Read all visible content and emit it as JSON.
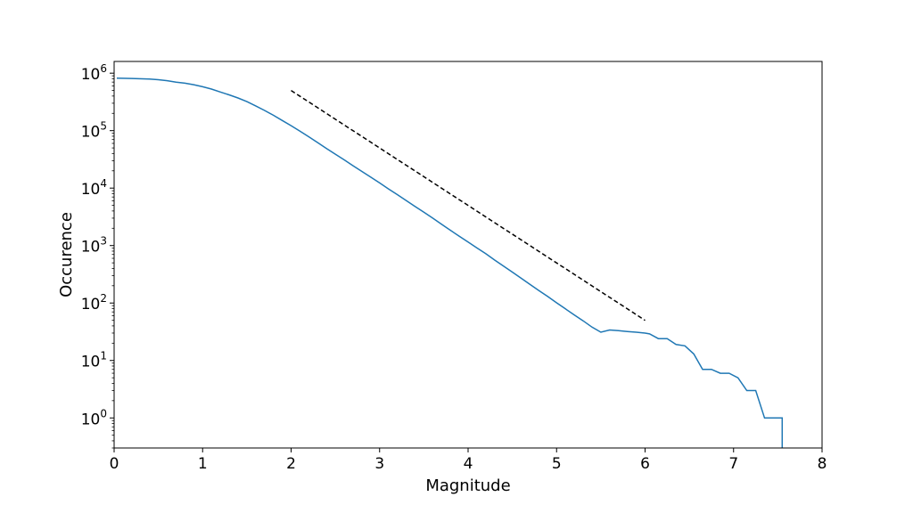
{
  "chart_data": {
    "type": "line",
    "title": "",
    "xlabel": "Magnitude",
    "ylabel": "Occurence",
    "xlim": [
      0,
      8
    ],
    "ylim": [
      0.3,
      1600000
    ],
    "y_scale": "log",
    "grid": false,
    "x_ticks": [
      {
        "value": 0,
        "label": "0"
      },
      {
        "value": 1,
        "label": "1"
      },
      {
        "value": 2,
        "label": "2"
      },
      {
        "value": 3,
        "label": "3"
      },
      {
        "value": 4,
        "label": "4"
      },
      {
        "value": 5,
        "label": "5"
      },
      {
        "value": 6,
        "label": "6"
      },
      {
        "value": 7,
        "label": "7"
      },
      {
        "value": 8,
        "label": "8"
      }
    ],
    "y_ticks": [
      {
        "value": 1,
        "base": "10",
        "exp": "0"
      },
      {
        "value": 10,
        "base": "10",
        "exp": "1"
      },
      {
        "value": 100,
        "base": "10",
        "exp": "2"
      },
      {
        "value": 1000,
        "base": "10",
        "exp": "3"
      },
      {
        "value": 10000,
        "base": "10",
        "exp": "4"
      },
      {
        "value": 100000,
        "base": "10",
        "exp": "5"
      },
      {
        "value": 1000000,
        "base": "10",
        "exp": "6"
      }
    ],
    "series": [
      {
        "color": "#1f77b4",
        "style": "solid",
        "x": [
          0.03,
          0.2,
          0.4,
          0.5,
          0.6,
          0.7,
          0.8,
          0.9,
          1.0,
          1.1,
          1.2,
          1.3,
          1.4,
          1.5,
          1.6,
          1.7,
          1.8,
          1.9,
          2.0,
          2.1,
          2.2,
          2.3,
          2.4,
          2.5,
          2.6,
          2.7,
          2.8,
          2.9,
          3.0,
          3.1,
          3.2,
          3.3,
          3.4,
          3.5,
          3.6,
          3.7,
          3.8,
          3.9,
          4.0,
          4.1,
          4.2,
          4.3,
          4.4,
          4.5,
          4.6,
          4.7,
          4.8,
          4.9,
          5.0,
          5.1,
          5.2,
          5.3,
          5.4,
          5.5,
          5.6,
          5.7,
          5.8,
          5.9,
          6.0,
          6.05,
          6.15,
          6.25,
          6.35,
          6.45,
          6.55,
          6.65,
          6.75,
          6.85,
          6.95,
          7.05,
          7.15,
          7.25,
          7.35,
          7.45,
          7.55,
          7.55
        ],
        "y": [
          820000,
          810000,
          790000,
          770000,
          740000,
          700000,
          670000,
          630000,
          580000,
          530000,
          470000,
          420000,
          370000,
          320000,
          270000,
          225000,
          185000,
          150000,
          122000,
          98000,
          78000,
          62000,
          49000,
          39000,
          31000,
          24500,
          19500,
          15500,
          12300,
          9700,
          7700,
          6100,
          4800,
          3800,
          3000,
          2350,
          1850,
          1450,
          1150,
          910,
          720,
          560,
          440,
          345,
          270,
          210,
          165,
          130,
          101,
          79,
          62,
          49,
          38,
          31,
          34,
          33,
          32,
          31,
          30,
          29,
          24,
          24,
          19,
          18,
          13,
          7,
          7,
          6,
          6,
          5,
          3,
          3,
          1,
          1,
          1,
          0.3
        ]
      },
      {
        "color": "#000000",
        "style": "dashed",
        "x": [
          2.0,
          6.0
        ],
        "y": [
          500000,
          50
        ]
      }
    ]
  }
}
